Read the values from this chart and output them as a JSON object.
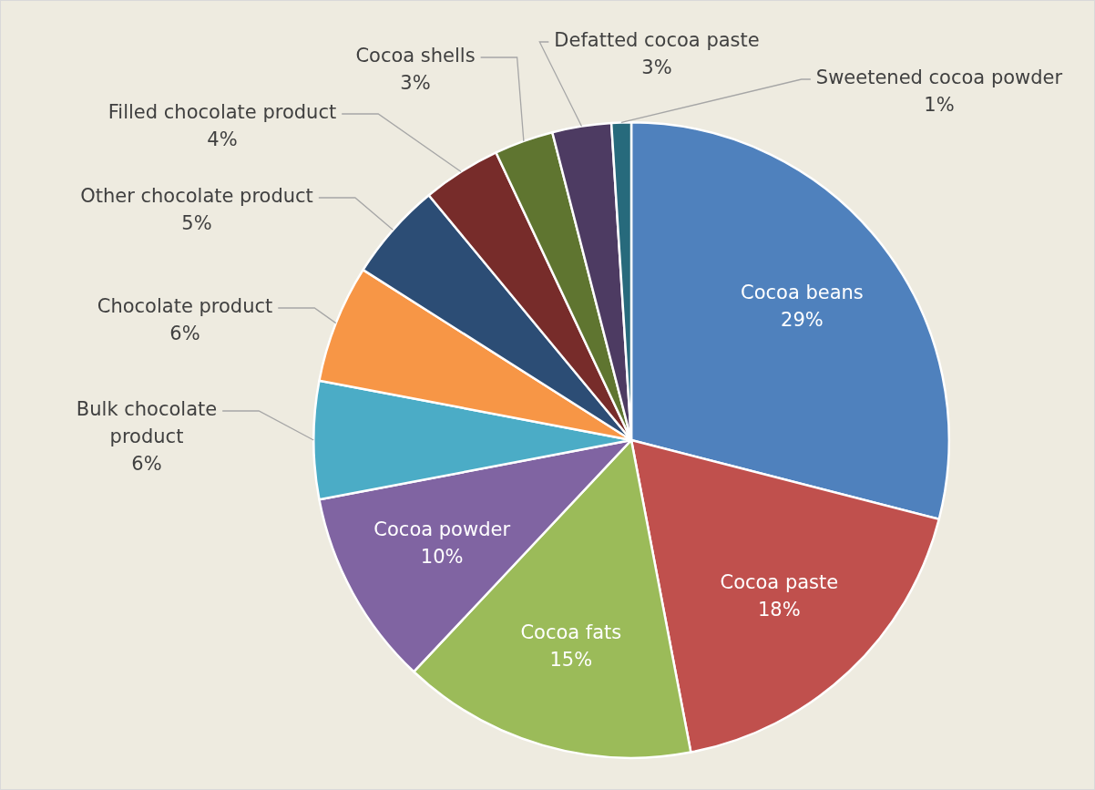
{
  "chart_data": {
    "type": "pie",
    "categories": [
      "Cocoa beans",
      "Cocoa paste",
      "Cocoa fats",
      "Cocoa powder",
      "Bulk chocolate product",
      "Chocolate product",
      "Other chocolate product",
      "Filled chocolate product",
      "Cocoa shells",
      "Defatted cocoa paste",
      "Sweetened cocoa powder"
    ],
    "values": [
      29,
      18,
      15,
      10,
      6,
      6,
      5,
      4,
      3,
      3,
      1
    ],
    "colors": [
      "#4f81bd",
      "#c0504d",
      "#9bbb59",
      "#8064a2",
      "#4bacc6",
      "#f79646",
      "#2c4d75",
      "#772c2a",
      "#5f7530",
      "#4d3b62",
      "#276a7c"
    ],
    "value_labels": [
      "29%",
      "18%",
      "15%",
      "10%",
      "6%",
      "6%",
      "5%",
      "4%",
      "3%",
      "3%",
      "1%"
    ],
    "legend": false
  }
}
